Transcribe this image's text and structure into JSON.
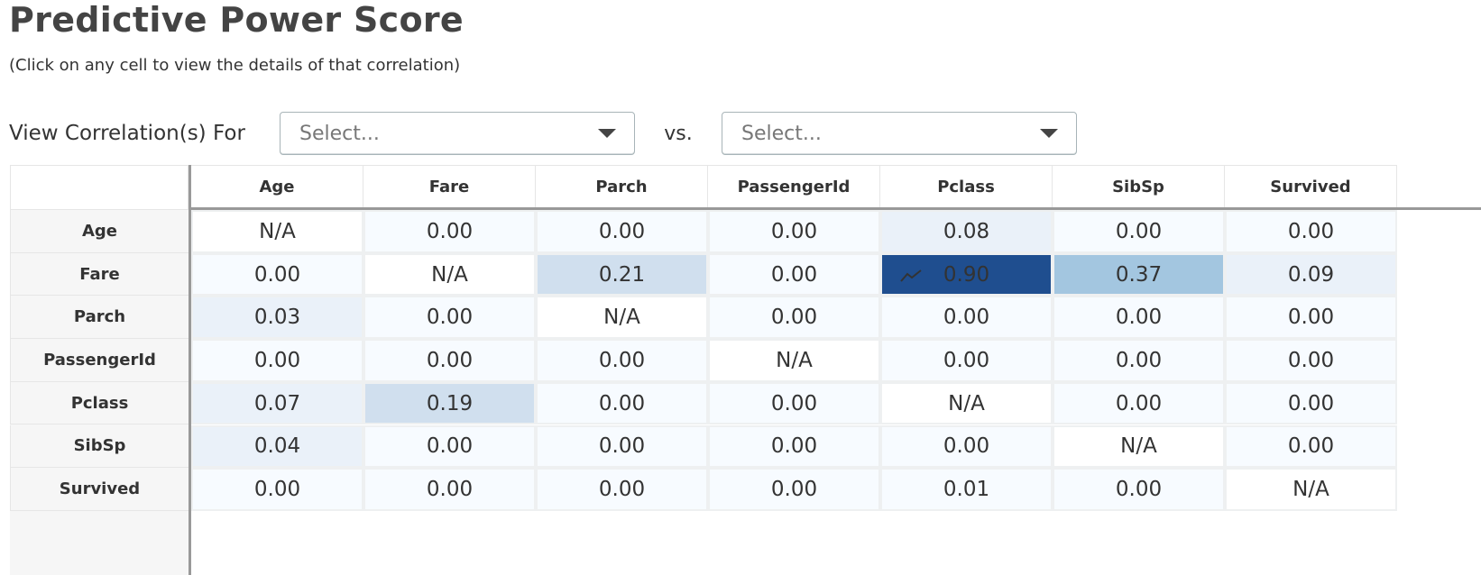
{
  "page": {
    "title": "Predictive Power Score",
    "subtitle": "(Click on any cell to view the details of that correlation)"
  },
  "filters": {
    "label": "View Correlation(s) For",
    "select_a_placeholder": "Select...",
    "vs_label": "vs.",
    "select_b_placeholder": "Select..."
  },
  "matrix": {
    "columns": [
      "Age",
      "Fare",
      "Parch",
      "PassengerId",
      "Pclass",
      "SibSp",
      "Survived"
    ],
    "rows": [
      "Age",
      "Fare",
      "Parch",
      "PassengerId",
      "Pclass",
      "SibSp",
      "Survived"
    ],
    "values": [
      [
        "N/A",
        "0.00",
        "0.00",
        "0.00",
        "0.08",
        "0.00",
        "0.00"
      ],
      [
        "0.00",
        "N/A",
        "0.21",
        "0.00",
        "0.90",
        "0.37",
        "0.09"
      ],
      [
        "0.03",
        "0.00",
        "N/A",
        "0.00",
        "0.00",
        "0.00",
        "0.00"
      ],
      [
        "0.00",
        "0.00",
        "0.00",
        "N/A",
        "0.00",
        "0.00",
        "0.00"
      ],
      [
        "0.07",
        "0.19",
        "0.00",
        "0.00",
        "N/A",
        "0.00",
        "0.00"
      ],
      [
        "0.04",
        "0.00",
        "0.00",
        "0.00",
        "0.00",
        "N/A",
        "0.00"
      ],
      [
        "0.00",
        "0.00",
        "0.00",
        "0.00",
        "0.01",
        "0.00",
        "N/A"
      ]
    ],
    "hovered_cell": {
      "row": 1,
      "col": 4,
      "icon": "trend-line-icon"
    },
    "colors": {
      "zero": "#f7fbff",
      "low": "#eaf1f9",
      "mid_low": "#d0dfee",
      "mid": "#a3c6e0",
      "high": "#1f4e8f",
      "na": "#ffffff"
    }
  }
}
